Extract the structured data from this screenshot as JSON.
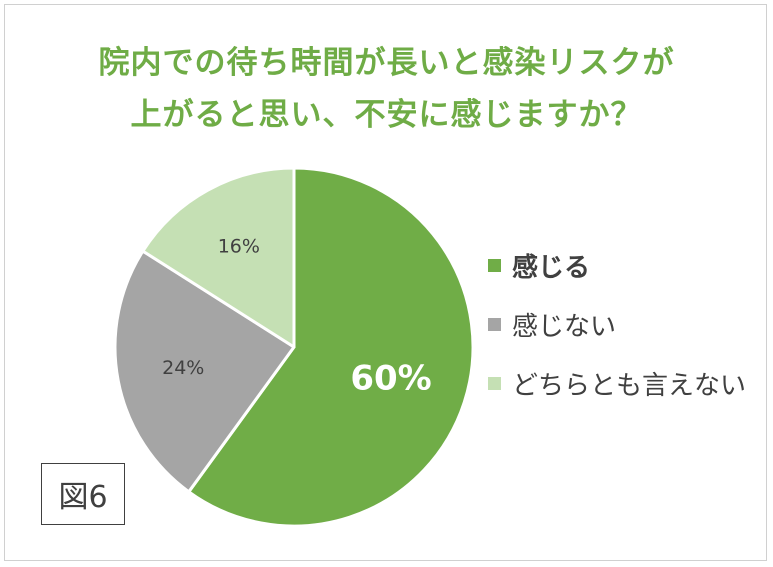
{
  "title": {
    "line1": "院内での待ち時間が長いと感染リスクが",
    "line2": "上がると思い、不安に感じますか？"
  },
  "figure_label": "図6",
  "colors": {
    "title": "#6fac46",
    "text": "#404040"
  },
  "chart_data": {
    "type": "pie",
    "title": "院内での待ち時間が長いと感染リスクが上がると思い、不安に感じますか？",
    "unit": "%",
    "start_angle": "12 o'clock, clockwise",
    "slices": [
      {
        "label": "感じる",
        "value": 60,
        "color": "#70ad47",
        "display": "60%"
      },
      {
        "label": "感じない",
        "value": 24,
        "color": "#a5a5a5",
        "display": "24%"
      },
      {
        "label": "どちらとも言えない",
        "value": 16,
        "color": "#c5e0b4",
        "display": "16%"
      }
    ],
    "legend_position": "right"
  }
}
